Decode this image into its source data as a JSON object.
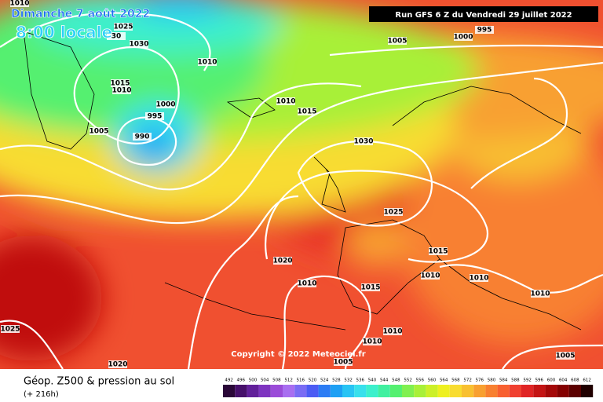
{
  "header": {
    "date": "Dimanche 7 août 2022",
    "time": "8:00 locale",
    "run": "Run GFS 6 Z du Vendredi 29 juillet 2022"
  },
  "copyright": "Copyright © 2022 Meteociel.fr",
  "footer": {
    "title": "Géop. Z500 & pression au sol",
    "lead": "(+ 216h)"
  },
  "isobar_labels": [
    1010,
    1025,
    30,
    1030,
    1015,
    1010,
    1000,
    995,
    1005,
    990,
    1010,
    1005,
    1000,
    995,
    1010,
    1015,
    1030,
    1025,
    1015,
    1010,
    1010,
    1010,
    1020,
    1010,
    1015,
    1010,
    1005,
    1005,
    1025,
    1020,
    1010
  ],
  "scale": {
    "labels": [
      492,
      496,
      500,
      504,
      508,
      512,
      516,
      520,
      524,
      528,
      532,
      536,
      540,
      544,
      548,
      552,
      556,
      560,
      564,
      568,
      572,
      576,
      580,
      584,
      588,
      592,
      596,
      600,
      604,
      608,
      612
    ],
    "colors": [
      "#2a0838",
      "#46106a",
      "#62209a",
      "#7e34c0",
      "#9a4cd8",
      "#a86ef0",
      "#7a6cf4",
      "#4c5cf4",
      "#2c7cf4",
      "#1ea0f4",
      "#28c4f4",
      "#38e0ec",
      "#3cf0cc",
      "#40f0a0",
      "#54f070",
      "#80f050",
      "#a8f038",
      "#ccf028",
      "#eef020",
      "#f8dc30",
      "#f8c030",
      "#f8a030",
      "#f88030",
      "#f86030",
      "#f04030",
      "#e02424",
      "#c41414",
      "#a40808",
      "#840000",
      "#5c0000",
      "#200000"
    ]
  }
}
